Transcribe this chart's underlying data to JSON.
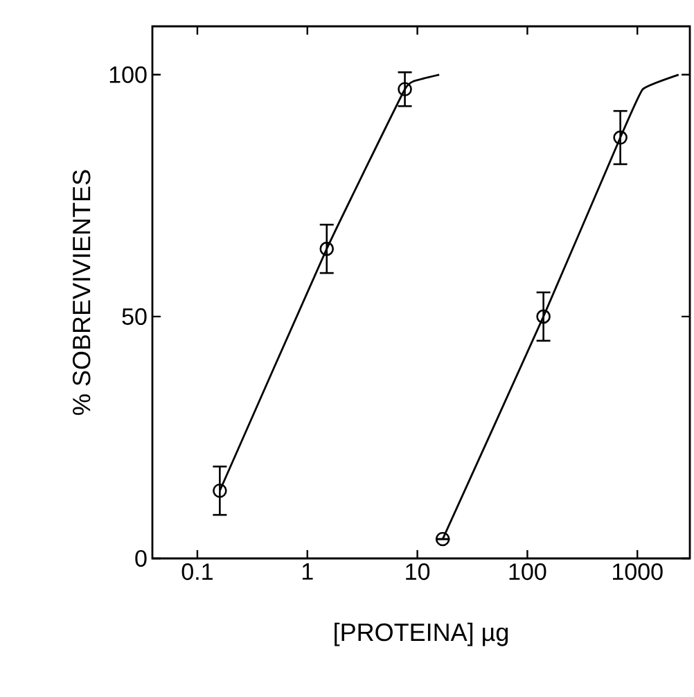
{
  "chart_data": {
    "type": "scatter",
    "xlabel": "[PROTEINA] µg",
    "ylabel": "% SOBREVIVIENTES",
    "log": "x",
    "xlim": [
      0.039,
      3000
    ],
    "ylim": [
      0,
      110
    ],
    "xticks": [
      0.1,
      1,
      10,
      100,
      1000
    ],
    "yticks": [
      0,
      50,
      100
    ],
    "series": [
      {
        "marker": "circle",
        "color": "#000000",
        "x": [
          0.16,
          1.5,
          7.7
        ],
        "values": [
          14,
          64,
          97
        ],
        "errors": [
          5,
          5,
          3.5
        ]
      },
      {
        "marker": "circle",
        "color": "#000000",
        "x": [
          17,
          140,
          700
        ],
        "values": [
          4,
          50,
          87
        ],
        "errors": [
          null,
          5,
          5.5
        ]
      },
      {
        "type": "line",
        "marker": "none",
        "color": "#000000",
        "line_style": "solid",
        "x": [
          0.16,
          1.5,
          7.7,
          10.5,
          15.8
        ],
        "values": [
          14,
          64,
          97,
          99,
          100
        ]
      },
      {
        "type": "line",
        "marker": "none",
        "color": "#000000",
        "line_style": "solid",
        "x": [
          17,
          140,
          700,
          1120,
          2370
        ],
        "values": [
          4,
          50,
          87,
          97,
          100
        ]
      }
    ]
  }
}
